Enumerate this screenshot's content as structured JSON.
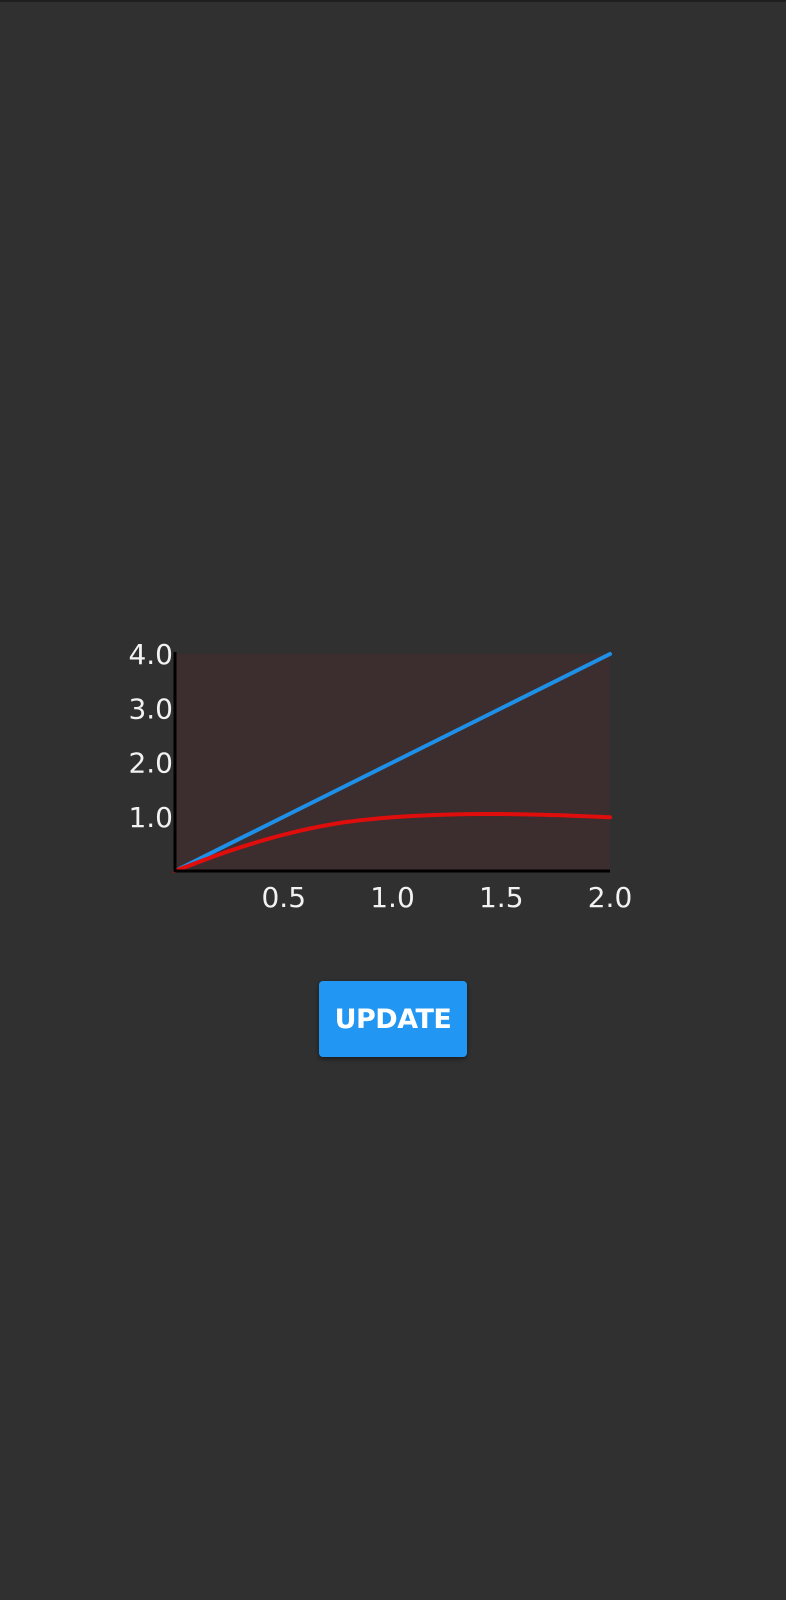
{
  "chart_data": {
    "type": "line",
    "x_ticks": [
      "0.5",
      "1.0",
      "1.5",
      "2.0"
    ],
    "y_ticks": [
      "1.0",
      "2.0",
      "3.0",
      "4.0"
    ],
    "xlim": [
      0,
      2
    ],
    "ylim": [
      0,
      4
    ],
    "grid": false,
    "plot_background": "#3c2d2e",
    "axis_color": "#000000",
    "series": [
      {
        "color": "#1e90e8",
        "x": [
          0,
          0.5,
          1.0,
          1.5,
          2.0
        ],
        "y": [
          0,
          1.0,
          2.0,
          3.0,
          4.0
        ]
      },
      {
        "color": "#e00d0d",
        "x": [
          0,
          0.25,
          0.5,
          0.75,
          1.0,
          1.25,
          1.5,
          1.75,
          2.0
        ],
        "y": [
          0,
          0.37,
          0.67,
          0.88,
          0.99,
          1.04,
          1.05,
          1.03,
          0.99
        ]
      }
    ]
  },
  "button": {
    "label": "UPDATE",
    "color": "#2196f3"
  }
}
